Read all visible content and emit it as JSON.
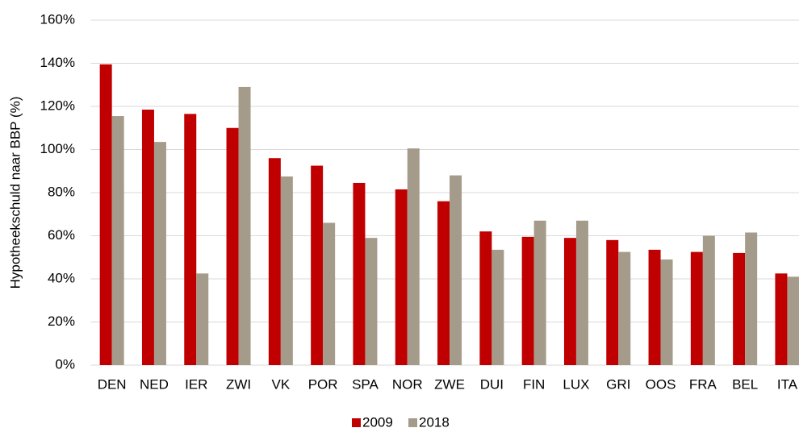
{
  "chart_data": {
    "type": "bar",
    "y_label": "Hypotheekschuld naar BBP (%)",
    "categories": [
      "DEN",
      "NED",
      "IER",
      "ZWI",
      "VK",
      "POR",
      "SPA",
      "NOR",
      "ZWE",
      "DUI",
      "FIN",
      "LUX",
      "GRI",
      "OOS",
      "FRA",
      "BEL",
      "ITA"
    ],
    "series": [
      {
        "name": "2009",
        "color": "#c00000",
        "values": [
          139.5,
          118.5,
          116.5,
          110,
          96,
          92.5,
          84.5,
          81.5,
          76,
          62,
          59.5,
          59,
          58,
          53.5,
          52.5,
          52,
          42.5
        ]
      },
      {
        "name": "2018",
        "color": "#a59b8a",
        "values": [
          115.5,
          103.5,
          42.5,
          129,
          87.5,
          66,
          59,
          100.5,
          88,
          53.5,
          67,
          67,
          52.5,
          49,
          60,
          61.5,
          41
        ]
      }
    ],
    "ylim": [
      0,
      160
    ],
    "yticks": [
      {
        "value": 0,
        "label": "0%"
      },
      {
        "value": 20,
        "label": "20%"
      },
      {
        "value": 40,
        "label": "40%"
      },
      {
        "value": 60,
        "label": "60%"
      },
      {
        "value": 80,
        "label": "80%"
      },
      {
        "value": 100,
        "label": "100%"
      },
      {
        "value": 120,
        "label": "120%"
      },
      {
        "value": 140,
        "label": "140%"
      },
      {
        "value": 160,
        "label": "160%"
      }
    ],
    "grid": true,
    "legend": "bottom"
  }
}
